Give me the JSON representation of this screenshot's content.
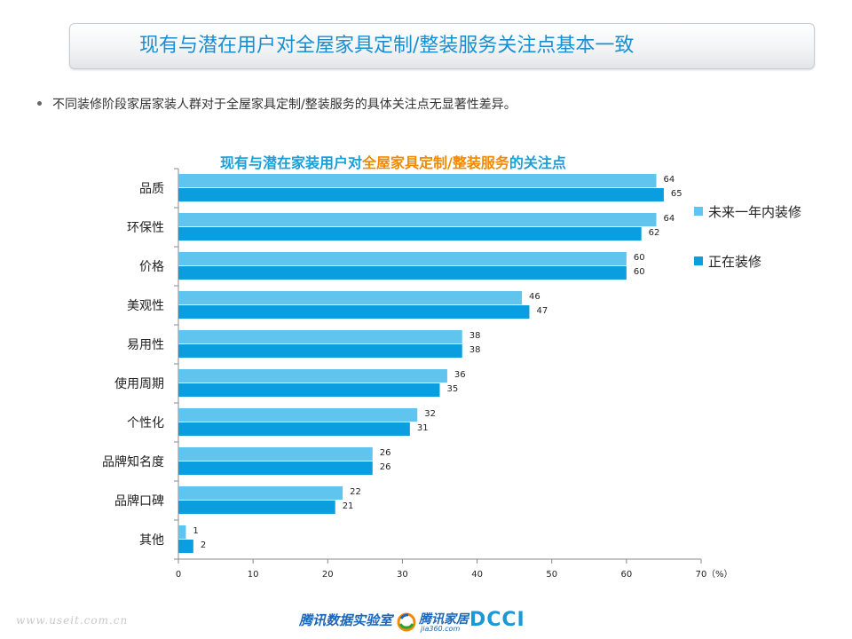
{
  "header": {
    "title": "现有与潜在用户对全屋家具定制/整装服务关注点基本一致"
  },
  "bullet": {
    "text": "不同装修阶段家居家装人群对于全屋家具定制/整装服务的具体关注点无显著性差异。"
  },
  "chart_data": {
    "type": "bar",
    "orientation": "horizontal",
    "title_parts": [
      "现有与潜在家装用户对",
      "全屋家具定制/整装服务",
      "的关注点"
    ],
    "categories": [
      "品质",
      "环保性",
      "价格",
      "美观性",
      "易用性",
      "使用周期",
      "个性化",
      "品牌知名度",
      "品牌口碑",
      "其他"
    ],
    "series": [
      {
        "name": "未来一年内装修",
        "color": "#5fc4ee",
        "values": [
          64,
          64,
          60,
          46,
          38,
          36,
          32,
          26,
          22,
          1
        ]
      },
      {
        "name": "正在装修",
        "color": "#0a9ee0",
        "values": [
          65,
          62,
          60,
          47,
          38,
          35,
          31,
          26,
          21,
          2
        ]
      }
    ],
    "xlim": [
      0,
      70
    ],
    "xticks": [
      0,
      10,
      20,
      30,
      40,
      50,
      60,
      70
    ],
    "xunit": "（%）",
    "grid": false,
    "legend_position": "right"
  },
  "footer": {
    "watermark": "www.useit.com.cn",
    "logo1": "腾讯数据实验室",
    "logo2": "腾讯家居",
    "logo2_sub": "jia360.com",
    "logo3": "DCCI"
  }
}
